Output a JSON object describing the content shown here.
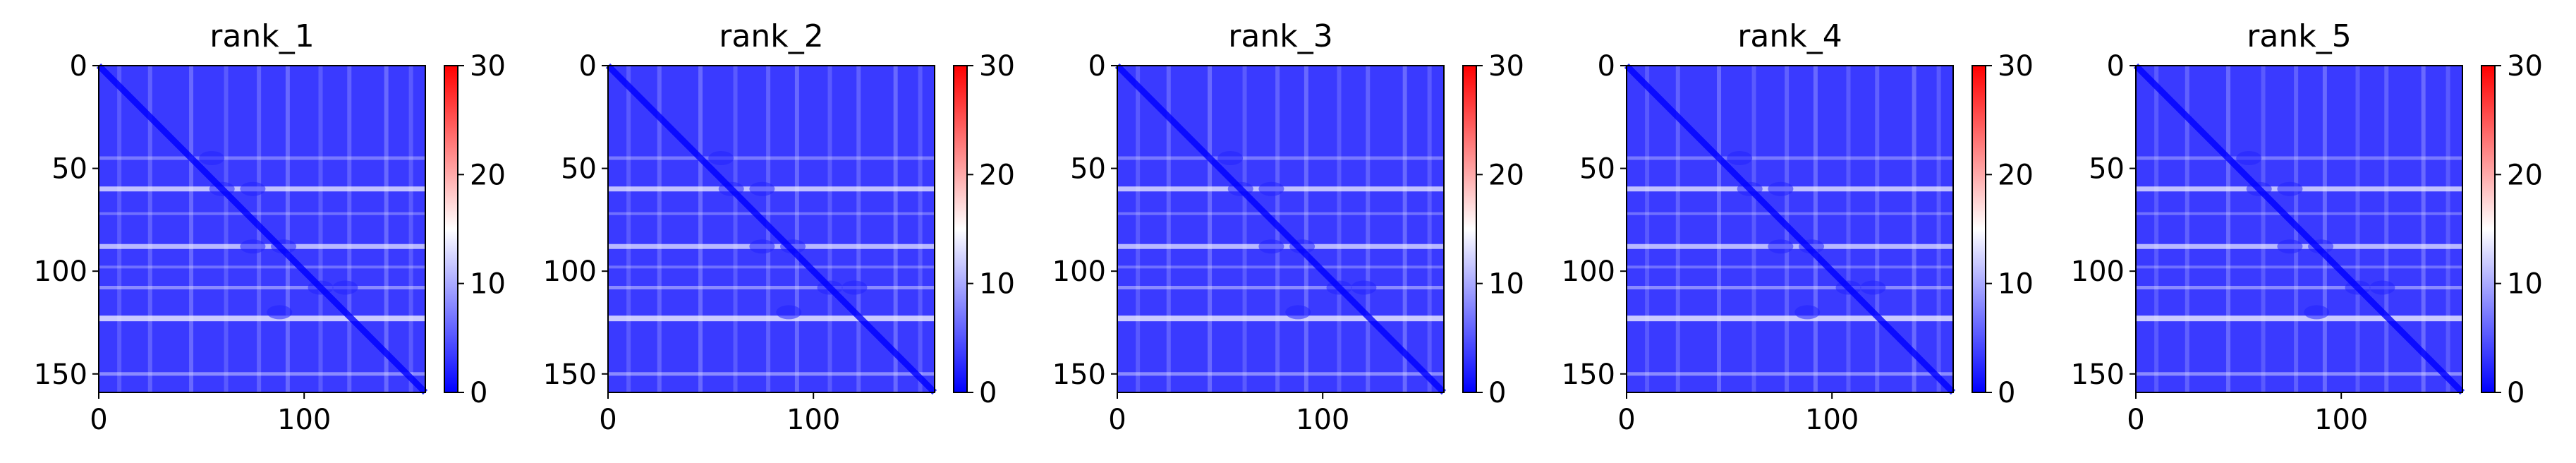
{
  "chart_data": [
    {
      "type": "heatmap",
      "title": "rank_1",
      "x_ticks": [
        0,
        100
      ],
      "y_ticks": [
        0,
        50,
        100,
        150
      ],
      "xlim": [
        0,
        159
      ],
      "ylim": [
        159,
        0
      ],
      "colorbar": {
        "ticks": [
          0,
          10,
          20,
          30
        ],
        "range": [
          0,
          30
        ],
        "colormap": "bwr"
      }
    },
    {
      "type": "heatmap",
      "title": "rank_2",
      "x_ticks": [
        0,
        100
      ],
      "y_ticks": [
        0,
        50,
        100,
        150
      ],
      "xlim": [
        0,
        159
      ],
      "ylim": [
        159,
        0
      ],
      "colorbar": {
        "ticks": [
          0,
          10,
          20,
          30
        ],
        "range": [
          0,
          30
        ],
        "colormap": "bwr"
      }
    },
    {
      "type": "heatmap",
      "title": "rank_3",
      "x_ticks": [
        0,
        100
      ],
      "y_ticks": [
        0,
        50,
        100,
        150
      ],
      "xlim": [
        0,
        159
      ],
      "ylim": [
        159,
        0
      ],
      "colorbar": {
        "ticks": [
          0,
          10,
          20,
          30
        ],
        "range": [
          0,
          30
        ],
        "colormap": "bwr"
      }
    },
    {
      "type": "heatmap",
      "title": "rank_4",
      "x_ticks": [
        0,
        100
      ],
      "y_ticks": [
        0,
        50,
        100,
        150
      ],
      "xlim": [
        0,
        159
      ],
      "ylim": [
        159,
        0
      ],
      "colorbar": {
        "ticks": [
          0,
          10,
          20,
          30
        ],
        "range": [
          0,
          30
        ],
        "colormap": "bwr"
      }
    },
    {
      "type": "heatmap",
      "title": "rank_5",
      "x_ticks": [
        0,
        100
      ],
      "y_ticks": [
        0,
        50,
        100,
        150
      ],
      "xlim": [
        0,
        159
      ],
      "ylim": [
        159,
        0
      ],
      "colorbar": {
        "ticks": [
          0,
          10,
          20,
          30
        ],
        "range": [
          0,
          30
        ],
        "colormap": "bwr"
      }
    }
  ],
  "colors": {
    "low": "#0000ff",
    "mid": "#ffffff",
    "high": "#ff0000",
    "diagonal": "#1414f5",
    "band": "#eeeeff"
  }
}
